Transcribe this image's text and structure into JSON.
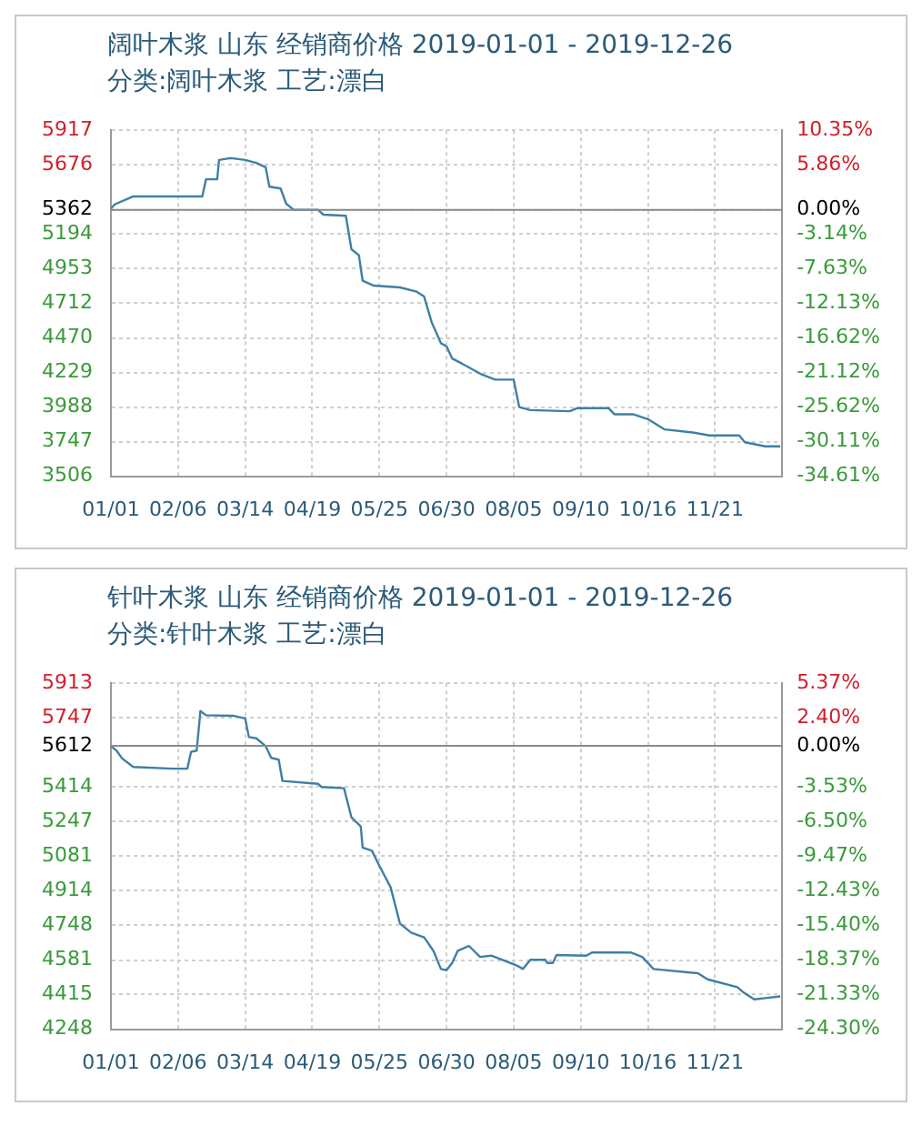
{
  "chart_data": [
    {
      "type": "line",
      "title": "阔叶木浆 山东 经销商价格 2019-01-01 - 2019-12-26",
      "subtitle": "分类:阔叶木浆 工艺:漂白",
      "series": [
        {
          "color": "#3f7fa6",
          "x": [
            "2019-01-01",
            "2019-01-03",
            "2019-01-13",
            "2019-02-19",
            "2019-02-21",
            "2019-02-27",
            "2019-02-28",
            "2019-03-06",
            "2019-03-14",
            "2019-03-20",
            "2019-03-25",
            "2019-03-27",
            "2019-04-02",
            "2019-04-05",
            "2019-04-09",
            "2019-04-22",
            "2019-04-25",
            "2019-05-07",
            "2019-05-10",
            "2019-05-14",
            "2019-05-16",
            "2019-05-22",
            "2019-06-05",
            "2019-06-14",
            "2019-06-18",
            "2019-06-22",
            "2019-06-27",
            "2019-06-30",
            "2019-07-03",
            "2019-07-08",
            "2019-07-18",
            "2019-07-26",
            "2019-08-05",
            "2019-08-08",
            "2019-08-14",
            "2019-09-04",
            "2019-09-08",
            "2019-09-25",
            "2019-09-28",
            "2019-10-08",
            "2019-10-16",
            "2019-10-25",
            "2019-11-09",
            "2019-11-18",
            "2019-12-04",
            "2019-12-07",
            "2019-12-18",
            "2019-12-26"
          ],
          "values": [
            5370,
            5400,
            5456,
            5456,
            5575,
            5575,
            5710,
            5723,
            5710,
            5689,
            5659,
            5524,
            5511,
            5405,
            5363,
            5363,
            5329,
            5321,
            5088,
            5046,
            4868,
            4834,
            4822,
            4792,
            4758,
            4580,
            4433,
            4411,
            4327,
            4293,
            4221,
            4179,
            4179,
            3988,
            3967,
            3959,
            3980,
            3980,
            3938,
            3938,
            3904,
            3832,
            3811,
            3790,
            3790,
            3743,
            3714,
            3714
          ]
        }
      ],
      "xlim": [
        "2019-01-01",
        "2019-12-27"
      ],
      "xticks": [
        {
          "value": "2019-01-01",
          "label": "01/01"
        },
        {
          "value": "2019-02-06",
          "label": "02/06"
        },
        {
          "value": "2019-03-14",
          "label": "03/14"
        },
        {
          "value": "2019-04-19",
          "label": "04/19"
        },
        {
          "value": "2019-05-25",
          "label": "05/25"
        },
        {
          "value": "2019-06-30",
          "label": "06/30"
        },
        {
          "value": "2019-08-05",
          "label": "08/05"
        },
        {
          "value": "2019-09-10",
          "label": "09/10"
        },
        {
          "value": "2019-10-16",
          "label": "10/16"
        },
        {
          "value": "2019-11-21",
          "label": "11/21"
        }
      ],
      "ylim": [
        3506,
        5917
      ],
      "yticks": [
        3506,
        3747,
        3988,
        4229,
        4470,
        4712,
        4953,
        5194,
        5362,
        5676,
        5917
      ],
      "y2lim": [
        -34.61,
        10.35
      ],
      "y2ticks": [
        {
          "value": -34.61,
          "label": "-34.61%"
        },
        {
          "value": -30.11,
          "label": "-30.11%"
        },
        {
          "value": -25.62,
          "label": "-25.62%"
        },
        {
          "value": -21.12,
          "label": "-21.12%"
        },
        {
          "value": -16.62,
          "label": "-16.62%"
        },
        {
          "value": -12.13,
          "label": "-12.13%"
        },
        {
          "value": -7.63,
          "label": "-7.63%"
        },
        {
          "value": -3.14,
          "label": "-3.14%"
        },
        {
          "value": 0,
          "label": "0.00%"
        },
        {
          "value": 5.86,
          "label": "5.86%"
        },
        {
          "value": 10.35,
          "label": "10.35%"
        }
      ],
      "ref_lines": [
        {
          "axis": "y",
          "value": 5362,
          "color": "#8a8a8a"
        }
      ],
      "grid": true,
      "legend": false
    },
    {
      "type": "line",
      "title": "针叶木浆 山东 经销商价格 2019-01-01 - 2019-12-26",
      "subtitle": "分类:针叶木浆 工艺:漂白",
      "series": [
        {
          "color": "#3f7fa6",
          "x": [
            "2019-01-01",
            "2019-01-04",
            "2019-01-07",
            "2019-01-13",
            "2019-02-03",
            "2019-02-11",
            "2019-02-13",
            "2019-02-16",
            "2019-02-18",
            "2019-02-21",
            "2019-03-08",
            "2019-03-14",
            "2019-03-16",
            "2019-03-20",
            "2019-03-25",
            "2019-03-28",
            "2019-04-01",
            "2019-04-03",
            "2019-04-22",
            "2019-04-24",
            "2019-05-06",
            "2019-05-10",
            "2019-05-15",
            "2019-05-16",
            "2019-05-21",
            "2019-05-25",
            "2019-05-31",
            "2019-06-05",
            "2019-06-11",
            "2019-06-18",
            "2019-06-23",
            "2019-06-27",
            "2019-06-30",
            "2019-07-03",
            "2019-07-06",
            "2019-07-12",
            "2019-07-18",
            "2019-07-24",
            "2019-07-30",
            "2019-08-07",
            "2019-08-10",
            "2019-08-14",
            "2019-08-22",
            "2019-08-23",
            "2019-08-26",
            "2019-08-28",
            "2019-09-13",
            "2019-09-16",
            "2019-10-07",
            "2019-10-13",
            "2019-10-19",
            "2019-11-12",
            "2019-11-17",
            "2019-12-03",
            "2019-12-06",
            "2019-12-12",
            "2019-12-18",
            "2019-12-26"
          ],
          "values": [
            5610,
            5589,
            5551,
            5510,
            5502,
            5502,
            5583,
            5589,
            5779,
            5759,
            5756,
            5744,
            5654,
            5648,
            5610,
            5554,
            5545,
            5443,
            5429,
            5414,
            5408,
            5268,
            5224,
            5122,
            5107,
            5034,
            4932,
            4757,
            4713,
            4690,
            4625,
            4538,
            4532,
            4567,
            4625,
            4649,
            4596,
            4602,
            4582,
            4553,
            4538,
            4582,
            4582,
            4567,
            4567,
            4605,
            4602,
            4617,
            4617,
            4596,
            4538,
            4517,
            4488,
            4450,
            4427,
            4392,
            4398,
            4406
          ]
        }
      ],
      "xlim": [
        "2019-01-01",
        "2019-12-27"
      ],
      "xticks": [
        {
          "value": "2019-01-01",
          "label": "01/01"
        },
        {
          "value": "2019-02-06",
          "label": "02/06"
        },
        {
          "value": "2019-03-14",
          "label": "03/14"
        },
        {
          "value": "2019-04-19",
          "label": "04/19"
        },
        {
          "value": "2019-05-25",
          "label": "05/25"
        },
        {
          "value": "2019-06-30",
          "label": "06/30"
        },
        {
          "value": "2019-08-05",
          "label": "08/05"
        },
        {
          "value": "2019-09-10",
          "label": "09/10"
        },
        {
          "value": "2019-10-16",
          "label": "10/16"
        },
        {
          "value": "2019-11-21",
          "label": "11/21"
        }
      ],
      "ylim": [
        4248,
        5913
      ],
      "yticks": [
        4248,
        4415,
        4581,
        4748,
        4914,
        5081,
        5247,
        5414,
        5612,
        5747,
        5913
      ],
      "y2lim": [
        -24.3,
        5.37
      ],
      "y2ticks": [
        {
          "value": -24.3,
          "label": "-24.30%"
        },
        {
          "value": -21.33,
          "label": "-21.33%"
        },
        {
          "value": -18.37,
          "label": "-18.37%"
        },
        {
          "value": -15.4,
          "label": "-15.40%"
        },
        {
          "value": -12.43,
          "label": "-12.43%"
        },
        {
          "value": -9.47,
          "label": "-9.47%"
        },
        {
          "value": -6.5,
          "label": "-6.50%"
        },
        {
          "value": -3.53,
          "label": "-3.53%"
        },
        {
          "value": 0,
          "label": "0.00%"
        },
        {
          "value": 2.4,
          "label": "2.40%"
        },
        {
          "value": 5.37,
          "label": "5.37%"
        }
      ],
      "ref_lines": [
        {
          "axis": "y",
          "value": 5612,
          "color": "#8a8a8a"
        }
      ],
      "grid": true,
      "legend": false
    }
  ]
}
